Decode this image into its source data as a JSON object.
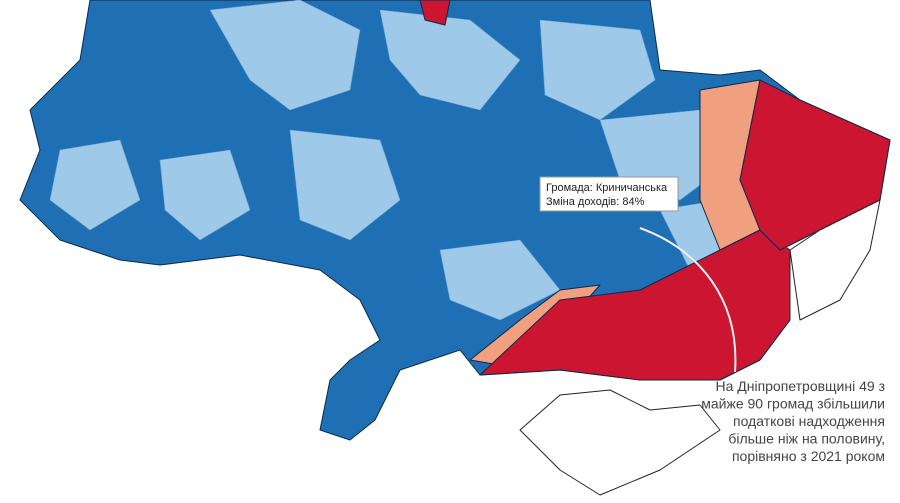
{
  "tooltip": {
    "lines": [
      "Громада: Криничанська",
      "Зміна доходів: 84%"
    ]
  },
  "annotation": {
    "lines": [
      "На Дніпропетровщині 49 з",
      "майже 90 громад збільшили",
      "податкові надходження",
      "більше ніж на половину,",
      "порівняно з 2021 роком"
    ]
  }
}
